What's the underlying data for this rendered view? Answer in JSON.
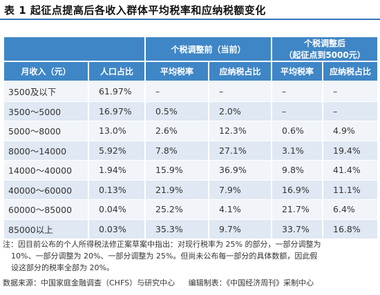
{
  "title": "表 1  起征点提高后各收入群体平均税率和应纳税额变化",
  "header": {
    "group_current": "个税调整前（当前）",
    "group_adjusted_line1": "个税调整后",
    "group_adjusted_line2": "（起征点到5000元）",
    "col_income": "月收入（元）",
    "col_pop_share": "人口占比",
    "col_avg_rate_1": "平均税率",
    "col_tax_share_1": "应纳税占比",
    "col_avg_rate_2": "平均税率",
    "col_tax_share_2": "应纳税占比"
  },
  "rows": [
    {
      "income": "3500及以下",
      "pop": "61.97%",
      "rate1": "–",
      "share1": "–",
      "rate2": "–",
      "share2": "–"
    },
    {
      "income": "3500～5000",
      "pop": "16.97%",
      "rate1": "0.5%",
      "share1": "2.0%",
      "rate2": "–",
      "share2": "–"
    },
    {
      "income": "5000～8000",
      "pop": "13.0%",
      "rate1": "2.6%",
      "share1": "12.3%",
      "rate2": "0.6%",
      "share2": "4.9%"
    },
    {
      "income": "8000～14000",
      "pop": "5.92%",
      "rate1": "7.8%",
      "share1": "27.1%",
      "rate2": "3.1%",
      "share2": "19.4%"
    },
    {
      "income": "14000～40000",
      "pop": "1.94%",
      "rate1": "15.9%",
      "share1": "36.9%",
      "rate2": "9.8%",
      "share2": "41.4%"
    },
    {
      "income": "40000～60000",
      "pop": "0.13%",
      "rate1": "21.9%",
      "share1": "7.9%",
      "rate2": "16.9%",
      "share2": "11.1%"
    },
    {
      "income": "60000～85000",
      "pop": "0.04%",
      "rate1": "25.2%",
      "share1": "4.1%",
      "rate2": "21.7%",
      "share2": "6.4%"
    },
    {
      "income": "85000以上",
      "pop": "0.03%",
      "rate1": "35.3%",
      "share1": "9.7%",
      "rate2": "33.7%",
      "share2": "16.8%"
    }
  ],
  "note": {
    "line1": "注：因目前公布的个人所得税法修正案草案中指出：对现行税率为 25% 的部分，一部分调整为",
    "line2": "10%、一部分调整为 20%、一部分调整为 25%。但尚未公布每一部分的具体数额，因此假",
    "line3": "设这部分的税率全部为 20%。"
  },
  "source": {
    "data_source": "数据来源：中国家庭金融调查（CHFS）与研究中心",
    "editor": "编辑制表：《中国经济周刊》采制中心"
  },
  "colors": {
    "header_bg": "#3f86c6",
    "row_light": "#f1f5fa",
    "row_dark": "#dfe8f3",
    "title_rule": "#2f73b7"
  }
}
